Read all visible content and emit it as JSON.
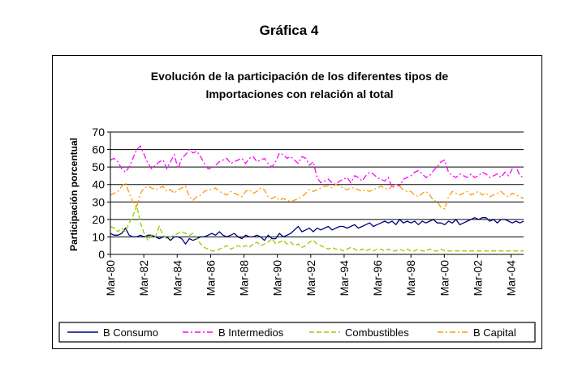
{
  "figure_title": "Gráfica 4",
  "chart_data": {
    "type": "line",
    "title_line1": "Evolución de la participación de los diferentes tipos de",
    "title_line2": "Importaciones con relación al total",
    "xlabel": "",
    "ylabel": "Participación porcentual",
    "ylim": [
      0,
      70
    ],
    "yticks": [
      "0",
      "10",
      "20",
      "30",
      "40",
      "50",
      "60",
      "70"
    ],
    "gridlines": [
      10,
      20,
      30,
      40,
      50,
      60,
      70
    ],
    "x_start": "1980-03",
    "x_end": "2004-12",
    "xticks": [
      "Mar-80",
      "Mar-82",
      "Mar-84",
      "Mar-86",
      "Mar-88",
      "Mar-90",
      "Mar-92",
      "Mar-94",
      "Mar-96",
      "Mar-98",
      "Mar-00",
      "Mar-02",
      "Mar-04"
    ],
    "legend_position": "bottom",
    "series": [
      {
        "name": "B Consumo",
        "color": "#000080",
        "dash": "solid",
        "values": [
          12,
          11,
          11,
          12,
          15,
          11,
          10,
          10,
          11,
          10,
          11,
          11,
          10,
          9,
          10,
          10,
          8,
          10,
          10,
          9,
          6,
          9,
          8,
          9,
          10,
          10,
          11,
          12,
          11,
          13,
          11,
          10,
          11,
          12,
          10,
          9,
          11,
          10,
          10,
          11,
          10,
          8,
          11,
          9,
          9,
          12,
          10,
          11,
          12,
          14,
          16,
          13,
          14,
          15,
          13,
          15,
          14,
          15,
          16,
          14,
          15,
          16,
          16,
          15,
          16,
          17,
          15,
          16,
          17,
          18,
          16,
          17,
          18,
          19,
          18,
          19,
          17,
          20,
          18,
          19,
          18,
          19,
          17,
          19,
          18,
          19,
          20,
          18,
          18,
          17,
          19,
          18,
          20,
          17,
          18,
          19,
          20,
          21,
          20,
          21,
          21,
          19,
          20,
          18,
          20,
          20,
          19,
          18,
          19,
          18,
          19
        ]
      },
      {
        "name": "B Intermedios",
        "color": "#ff00ff",
        "dash": "dashdot",
        "values": [
          54,
          55,
          53,
          49,
          47,
          50,
          55,
          60,
          62,
          57,
          52,
          49,
          51,
          53,
          54,
          49,
          53,
          57,
          49,
          55,
          57,
          60,
          58,
          59,
          56,
          52,
          49,
          49,
          51,
          53,
          54,
          55,
          52,
          53,
          54,
          55,
          52,
          55,
          56,
          53,
          54,
          55,
          52,
          50,
          53,
          58,
          57,
          55,
          56,
          54,
          52,
          56,
          55,
          51,
          53,
          44,
          41,
          42,
          43,
          41,
          40,
          42,
          43,
          44,
          41,
          45,
          44,
          42,
          45,
          47,
          46,
          44,
          43,
          42,
          44,
          38,
          40,
          39,
          43,
          44,
          45,
          47,
          48,
          46,
          44,
          45,
          48,
          50,
          53,
          54,
          47,
          45,
          44,
          46,
          45,
          44,
          46,
          44,
          45,
          47,
          46,
          44,
          45,
          46,
          44,
          47,
          45,
          49,
          50,
          45,
          44
        ]
      },
      {
        "name": "Combustibles",
        "color": "#99cc00",
        "dash": "dashed",
        "values": [
          16,
          15,
          13,
          15,
          13,
          18,
          22,
          28,
          18,
          12,
          8,
          11,
          10,
          16,
          11,
          9,
          10,
          11,
          12,
          13,
          12,
          11,
          12,
          9,
          6,
          4,
          3,
          2,
          2,
          3,
          4,
          5,
          3,
          4,
          5,
          4,
          5,
          4,
          6,
          7,
          5,
          6,
          7,
          9,
          6,
          7,
          8,
          6,
          7,
          5,
          6,
          4,
          5,
          7,
          8,
          6,
          5,
          4,
          3,
          4,
          3,
          3,
          2,
          3,
          4,
          3,
          2,
          3,
          2,
          3,
          2,
          3,
          3,
          2,
          3,
          2,
          2,
          3,
          2,
          3,
          2,
          2,
          3,
          2,
          2,
          3,
          2,
          2,
          3,
          2,
          2,
          2,
          2,
          2,
          2,
          2,
          2,
          2,
          2,
          2,
          2,
          2,
          2,
          2,
          2,
          2,
          2,
          2,
          2,
          2,
          2
        ]
      },
      {
        "name": "B Capital",
        "color": "#ff9900",
        "dash": "dashdot",
        "values": [
          34,
          35,
          36,
          39,
          41,
          35,
          30,
          27,
          35,
          38,
          39,
          38,
          37,
          38,
          39,
          36,
          37,
          35,
          37,
          38,
          39,
          33,
          31,
          33,
          34,
          36,
          37,
          37,
          38,
          36,
          35,
          34,
          36,
          35,
          34,
          33,
          36,
          37,
          35,
          36,
          38,
          37,
          33,
          32,
          33,
          31,
          32,
          31,
          30,
          31,
          32,
          33,
          35,
          37,
          36,
          37,
          38,
          39,
          39,
          38,
          40,
          39,
          38,
          37,
          38,
          38,
          37,
          36,
          37,
          36,
          37,
          38,
          39,
          38,
          37,
          39,
          40,
          39,
          37,
          36,
          36,
          34,
          33,
          35,
          36,
          34,
          31,
          30,
          27,
          26,
          33,
          36,
          35,
          34,
          35,
          36,
          34,
          35,
          36,
          34,
          35,
          33,
          34,
          35,
          36,
          34,
          33,
          35,
          34,
          33,
          32
        ]
      }
    ]
  }
}
